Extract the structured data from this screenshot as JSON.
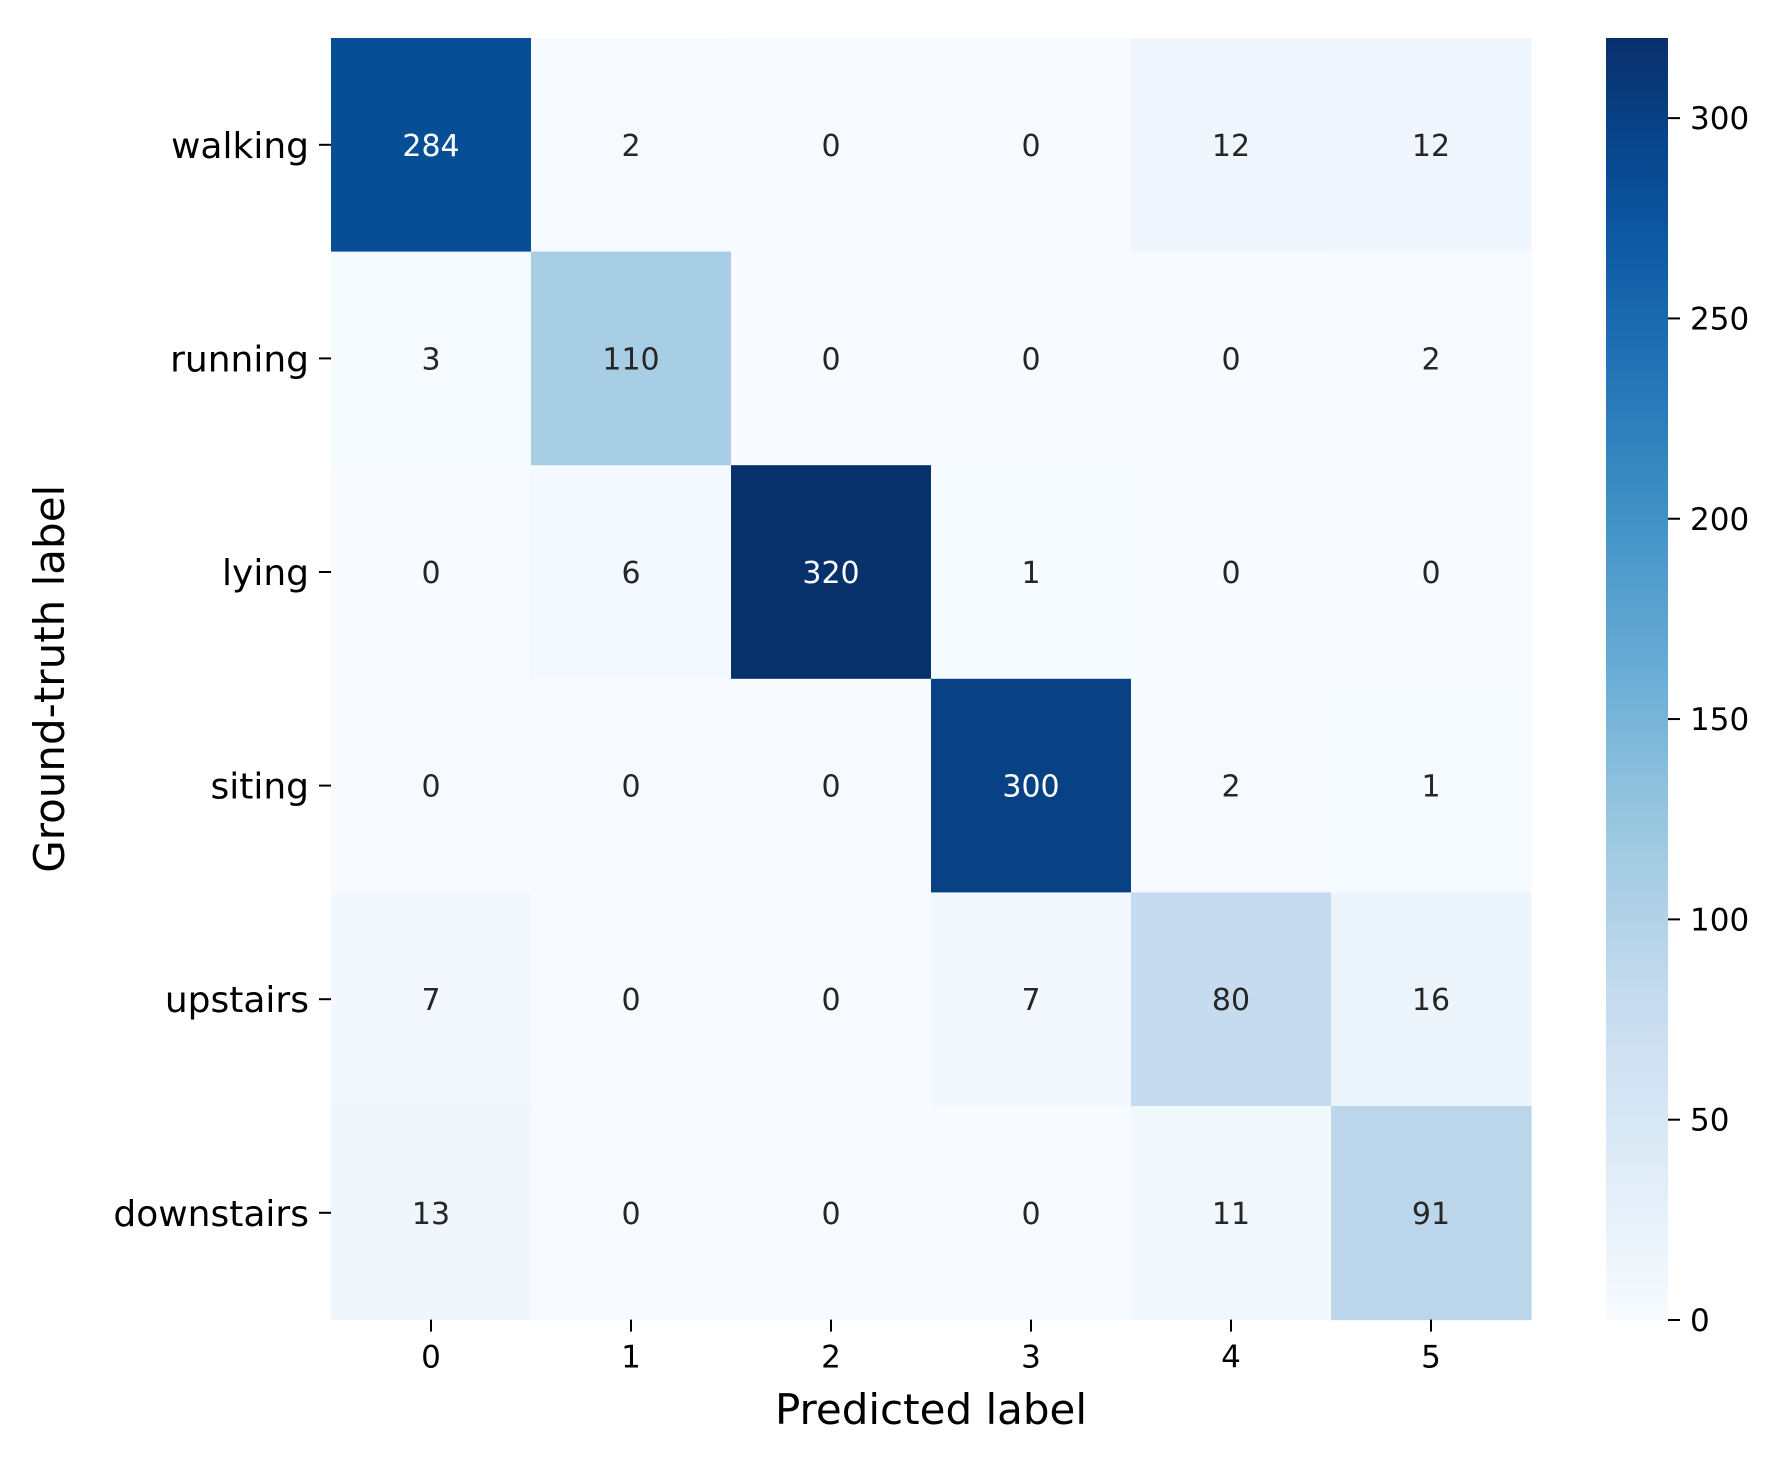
{
  "chart_data": {
    "type": "heatmap",
    "title": "",
    "xlabel": "Predicted label",
    "ylabel": "Ground-truth label",
    "x_categories": [
      "0",
      "1",
      "2",
      "3",
      "4",
      "5"
    ],
    "y_categories": [
      "walking",
      "running",
      "lying",
      "siting",
      "upstairs",
      "downstairs"
    ],
    "values": [
      [
        284,
        2,
        0,
        0,
        12,
        12
      ],
      [
        3,
        110,
        0,
        0,
        0,
        2
      ],
      [
        0,
        6,
        320,
        1,
        0,
        0
      ],
      [
        0,
        0,
        0,
        300,
        2,
        1
      ],
      [
        7,
        0,
        0,
        7,
        80,
        16
      ],
      [
        13,
        0,
        0,
        0,
        11,
        91
      ]
    ],
    "colormap": "Blues",
    "vmin": 0,
    "vmax": 320,
    "colorbar_ticks": [
      "0",
      "50",
      "100",
      "150",
      "200",
      "250",
      "300"
    ],
    "annotations": true,
    "grid": false,
    "legend": "colorbar-right"
  }
}
